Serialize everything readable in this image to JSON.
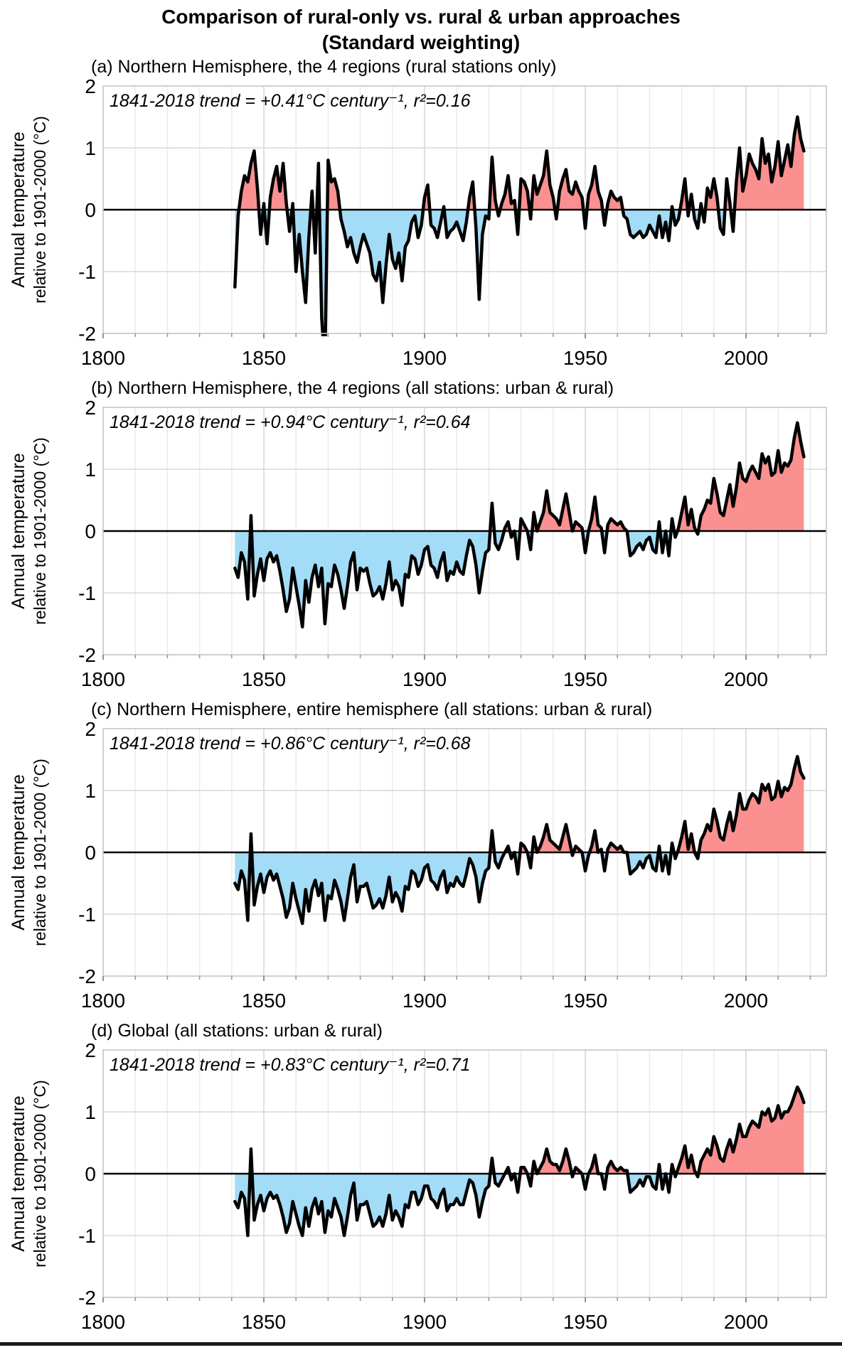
{
  "title": {
    "line1": "Comparison of rural-only vs. rural & urban approaches",
    "line2": "(Standard weighting)"
  },
  "axis": {
    "ylabel_line1": "Annual temperature",
    "ylabel_line2": "relative to 1901-2000 (°C)",
    "x_ticks": [
      1800,
      1850,
      1900,
      1950,
      2000
    ],
    "y_ticks": [
      2,
      1,
      0,
      -1,
      -2
    ],
    "x_range": [
      1800,
      2025
    ],
    "y_range": [
      -2,
      2
    ],
    "grid_interval_years": 10
  },
  "colors": {
    "positive_fill": "#FA9090",
    "negative_fill": "#A3DCF6",
    "line": "#000000",
    "zero_line": "#000000",
    "grid_minor": "#ececec",
    "grid_major": "#d8d8d8",
    "plot_border": "#c4c4c4",
    "tick": "#999999"
  },
  "chart_data": [
    {
      "type": "area-line",
      "caption": "(a) Northern Hemisphere, the 4 regions (rural stations only)",
      "trend_label": "1841-2018 trend = +0.41°C century⁻¹, r²=0.16",
      "trend_per_century_c": 0.41,
      "r2": 0.16,
      "start_year": 1841,
      "end_year": 2018,
      "values": [
        -1.25,
        -0.1,
        0.3,
        0.55,
        0.45,
        0.75,
        0.95,
        0.35,
        -0.4,
        0.1,
        -0.55,
        0.2,
        0.5,
        0.7,
        0.3,
        0.75,
        0.1,
        -0.35,
        0.1,
        -1.0,
        -0.4,
        -1.0,
        -1.5,
        -0.45,
        0.3,
        -0.7,
        0.75,
        -1.75,
        -2.55,
        0.8,
        0.45,
        0.5,
        0.3,
        -0.15,
        -0.35,
        -0.6,
        -0.45,
        -0.7,
        -0.85,
        -0.6,
        -0.4,
        -0.55,
        -0.7,
        -1.05,
        -1.15,
        -0.85,
        -1.5,
        -0.9,
        -0.4,
        -0.8,
        -0.95,
        -0.7,
        -1.15,
        -0.6,
        -0.5,
        -0.2,
        -0.1,
        -0.45,
        -0.25,
        0.2,
        0.4,
        -0.25,
        -0.3,
        -0.45,
        -0.2,
        0.05,
        -0.45,
        -0.35,
        -0.3,
        -0.2,
        -0.35,
        -0.5,
        -0.2,
        0.2,
        0.45,
        -0.3,
        -1.45,
        -0.4,
        -0.1,
        -0.15,
        0.85,
        0.15,
        -0.1,
        0.1,
        0.25,
        0.55,
        0.1,
        0.15,
        -0.4,
        0.5,
        0.45,
        0.3,
        -0.15,
        0.55,
        0.25,
        0.4,
        0.55,
        0.95,
        0.4,
        0.2,
        -0.15,
        0.3,
        0.5,
        0.65,
        0.3,
        0.25,
        0.45,
        0.3,
        0.2,
        -0.3,
        0.25,
        0.4,
        0.7,
        0.3,
        0.15,
        -0.25,
        0.1,
        0.3,
        0.2,
        0.15,
        0.2,
        -0.1,
        -0.15,
        -0.4,
        -0.45,
        -0.4,
        -0.35,
        -0.45,
        -0.4,
        -0.25,
        -0.35,
        -0.45,
        -0.1,
        -0.45,
        -0.2,
        -0.5,
        0.05,
        -0.25,
        -0.15,
        0.15,
        0.5,
        -0.1,
        0.25,
        -0.15,
        -0.3,
        0.1,
        -0.2,
        0.35,
        0.2,
        0.5,
        0.2,
        -0.3,
        -0.4,
        0.5,
        0.1,
        -0.35,
        0.45,
        1.0,
        0.3,
        0.55,
        0.9,
        0.75,
        0.65,
        0.5,
        1.15,
        0.75,
        0.9,
        0.45,
        0.7,
        1.1,
        0.55,
        0.8,
        1.05,
        0.7,
        1.2,
        1.5,
        1.15,
        0.95
      ]
    },
    {
      "type": "area-line",
      "caption": "(b) Northern Hemisphere, the 4 regions (all stations: urban & rural)",
      "trend_label": "1841-2018 trend = +0.94°C century⁻¹, r²=0.64",
      "trend_per_century_c": 0.94,
      "r2": 0.64,
      "start_year": 1841,
      "end_year": 2018,
      "values": [
        -0.6,
        -0.75,
        -0.35,
        -0.5,
        -1.1,
        0.25,
        -1.05,
        -0.7,
        -0.45,
        -0.8,
        -0.45,
        -0.35,
        -0.5,
        -0.4,
        -0.65,
        -0.95,
        -1.3,
        -1.1,
        -0.6,
        -0.9,
        -1.2,
        -1.55,
        -0.8,
        -1.15,
        -0.75,
        -0.55,
        -0.9,
        -0.6,
        -1.5,
        -0.85,
        -0.9,
        -0.55,
        -0.7,
        -0.95,
        -1.25,
        -0.9,
        -0.5,
        -0.35,
        -0.95,
        -0.6,
        -0.65,
        -0.6,
        -0.85,
        -1.05,
        -1.0,
        -0.9,
        -1.1,
        -0.85,
        -0.5,
        -0.95,
        -0.8,
        -0.9,
        -1.2,
        -0.7,
        -0.75,
        -0.4,
        -0.45,
        -0.7,
        -0.55,
        -0.3,
        -0.25,
        -0.55,
        -0.6,
        -0.75,
        -0.5,
        -0.35,
        -0.8,
        -0.65,
        -0.7,
        -0.5,
        -0.65,
        -0.7,
        -0.4,
        -0.15,
        -0.25,
        -0.55,
        -1.0,
        -0.65,
        -0.35,
        -0.3,
        0.45,
        -0.2,
        -0.3,
        -0.15,
        0.05,
        0.15,
        -0.1,
        0.0,
        -0.45,
        0.2,
        0.1,
        0.0,
        -0.3,
        0.3,
        0.0,
        0.15,
        0.3,
        0.65,
        0.3,
        0.25,
        0.2,
        0.1,
        0.35,
        0.6,
        0.3,
        0.0,
        0.15,
        0.1,
        0.05,
        -0.35,
        0.0,
        0.2,
        0.55,
        0.1,
        0.05,
        -0.35,
        0.1,
        0.2,
        0.15,
        0.1,
        0.15,
        0.05,
        0.0,
        -0.4,
        -0.35,
        -0.25,
        -0.2,
        -0.3,
        -0.15,
        -0.1,
        -0.3,
        -0.35,
        0.15,
        -0.35,
        0.0,
        -0.4,
        0.2,
        -0.1,
        0.05,
        0.3,
        0.55,
        0.1,
        0.35,
        0.05,
        -0.05,
        0.25,
        0.35,
        0.5,
        0.45,
        0.85,
        0.6,
        0.3,
        0.25,
        0.5,
        0.75,
        0.4,
        0.7,
        1.1,
        0.85,
        0.8,
        0.95,
        1.05,
        0.95,
        0.85,
        1.25,
        1.1,
        1.2,
        0.9,
        0.95,
        1.3,
        0.95,
        1.1,
        1.05,
        1.15,
        1.5,
        1.75,
        1.45,
        1.2
      ]
    },
    {
      "type": "area-line",
      "caption": "(c) Northern Hemisphere, entire hemisphere (all stations: urban & rural)",
      "trend_label": "1841-2018 trend = +0.86°C century⁻¹, r²=0.68",
      "trend_per_century_c": 0.86,
      "r2": 0.68,
      "start_year": 1841,
      "end_year": 2018,
      "values": [
        -0.5,
        -0.6,
        -0.3,
        -0.45,
        -1.1,
        0.3,
        -0.85,
        -0.55,
        -0.35,
        -0.65,
        -0.4,
        -0.3,
        -0.45,
        -0.35,
        -0.55,
        -0.75,
        -1.05,
        -0.9,
        -0.5,
        -0.75,
        -0.95,
        -1.15,
        -0.6,
        -0.95,
        -0.6,
        -0.45,
        -0.7,
        -0.5,
        -1.1,
        -0.7,
        -0.75,
        -0.45,
        -0.6,
        -0.8,
        -1.1,
        -0.75,
        -0.4,
        -0.2,
        -0.8,
        -0.55,
        -0.55,
        -0.5,
        -0.7,
        -0.9,
        -0.85,
        -0.75,
        -0.9,
        -0.7,
        -0.4,
        -0.8,
        -0.65,
        -0.75,
        -0.95,
        -0.55,
        -0.6,
        -0.3,
        -0.35,
        -0.55,
        -0.45,
        -0.25,
        -0.2,
        -0.45,
        -0.5,
        -0.6,
        -0.4,
        -0.3,
        -0.65,
        -0.5,
        -0.55,
        -0.4,
        -0.5,
        -0.55,
        -0.35,
        -0.1,
        -0.2,
        -0.4,
        -0.8,
        -0.5,
        -0.3,
        -0.25,
        0.35,
        -0.15,
        -0.25,
        -0.1,
        0.0,
        0.1,
        -0.1,
        0.0,
        -0.35,
        0.15,
        0.1,
        0.0,
        -0.25,
        0.25,
        0.0,
        0.1,
        0.25,
        0.45,
        0.2,
        0.15,
        0.1,
        0.05,
        0.25,
        0.45,
        0.2,
        -0.05,
        0.1,
        0.05,
        0.0,
        -0.3,
        -0.05,
        0.1,
        0.35,
        0.0,
        0.05,
        -0.3,
        0.05,
        0.15,
        0.1,
        0.05,
        0.1,
        0.0,
        0.0,
        -0.35,
        -0.3,
        -0.25,
        -0.15,
        -0.25,
        -0.1,
        -0.05,
        -0.25,
        -0.3,
        0.1,
        -0.3,
        -0.05,
        -0.35,
        0.15,
        -0.1,
        0.05,
        0.25,
        0.5,
        0.05,
        0.3,
        0.0,
        -0.1,
        0.2,
        0.3,
        0.45,
        0.35,
        0.7,
        0.5,
        0.25,
        0.2,
        0.45,
        0.65,
        0.35,
        0.6,
        0.95,
        0.7,
        0.7,
        0.85,
        0.95,
        0.9,
        0.8,
        1.1,
        1.0,
        1.1,
        0.85,
        0.9,
        1.15,
        0.9,
        1.05,
        1.0,
        1.1,
        1.35,
        1.55,
        1.3,
        1.2
      ]
    },
    {
      "type": "area-line",
      "caption": "(d) Global (all stations: urban & rural)",
      "trend_label": "1841-2018 trend = +0.83°C century⁻¹, r²=0.71",
      "trend_per_century_c": 0.83,
      "r2": 0.71,
      "start_year": 1841,
      "end_year": 2018,
      "values": [
        -0.45,
        -0.55,
        -0.3,
        -0.4,
        -1.0,
        0.4,
        -0.75,
        -0.5,
        -0.35,
        -0.6,
        -0.4,
        -0.3,
        -0.4,
        -0.35,
        -0.5,
        -0.7,
        -0.95,
        -0.8,
        -0.45,
        -0.65,
        -0.85,
        -1.0,
        -0.55,
        -0.85,
        -0.55,
        -0.4,
        -0.65,
        -0.45,
        -0.95,
        -0.6,
        -0.7,
        -0.4,
        -0.55,
        -0.7,
        -1.0,
        -0.7,
        -0.35,
        -0.15,
        -0.75,
        -0.5,
        -0.5,
        -0.45,
        -0.65,
        -0.85,
        -0.8,
        -0.7,
        -0.85,
        -0.65,
        -0.35,
        -0.75,
        -0.6,
        -0.7,
        -0.85,
        -0.5,
        -0.55,
        -0.3,
        -0.3,
        -0.5,
        -0.4,
        -0.2,
        -0.2,
        -0.4,
        -0.45,
        -0.55,
        -0.35,
        -0.25,
        -0.6,
        -0.5,
        -0.5,
        -0.4,
        -0.5,
        -0.5,
        -0.3,
        -0.1,
        -0.15,
        -0.35,
        -0.7,
        -0.45,
        -0.25,
        -0.2,
        0.25,
        -0.15,
        -0.2,
        -0.1,
        0.0,
        0.1,
        -0.1,
        0.0,
        -0.3,
        0.1,
        0.1,
        0.0,
        -0.2,
        0.2,
        0.0,
        0.1,
        0.2,
        0.4,
        0.2,
        0.15,
        0.15,
        0.05,
        0.2,
        0.4,
        0.2,
        -0.05,
        0.1,
        0.05,
        0.0,
        -0.25,
        0.0,
        0.1,
        0.3,
        0.0,
        0.0,
        -0.25,
        0.1,
        0.2,
        0.1,
        0.05,
        0.1,
        0.05,
        0.05,
        -0.3,
        -0.25,
        -0.2,
        -0.1,
        -0.2,
        -0.05,
        -0.05,
        -0.2,
        -0.25,
        0.15,
        -0.25,
        0.0,
        -0.3,
        0.15,
        -0.05,
        0.1,
        0.25,
        0.45,
        0.1,
        0.3,
        0.05,
        -0.05,
        0.2,
        0.3,
        0.4,
        0.3,
        0.6,
        0.45,
        0.25,
        0.2,
        0.4,
        0.55,
        0.35,
        0.55,
        0.8,
        0.6,
        0.6,
        0.75,
        0.85,
        0.8,
        0.75,
        1.0,
        0.95,
        1.05,
        0.85,
        0.9,
        1.1,
        0.9,
        1.0,
        1.0,
        1.1,
        1.25,
        1.4,
        1.3,
        1.15
      ]
    }
  ]
}
